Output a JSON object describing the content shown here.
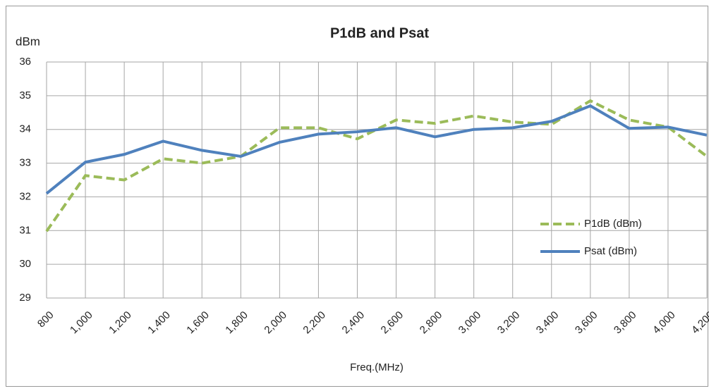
{
  "chart_data": {
    "type": "line",
    "title": "P1dB and Psat",
    "y_label": "dBm",
    "x_label": "Freq.(MHz)",
    "x": [
      800,
      1000,
      1200,
      1400,
      1600,
      1800,
      2000,
      2200,
      2400,
      2600,
      2800,
      3000,
      3200,
      3400,
      3600,
      3800,
      4000,
      4200
    ],
    "series": [
      {
        "name": "P1dB (dBm)",
        "color": "#9bbb59",
        "dashed": true,
        "values": [
          30.98,
          32.63,
          32.5,
          33.13,
          33.0,
          33.2,
          34.05,
          34.05,
          33.72,
          34.28,
          34.18,
          34.4,
          34.22,
          34.15,
          34.85,
          34.28,
          34.07,
          33.2
        ]
      },
      {
        "name": "Psat (dBm)",
        "color": "#4f81bd",
        "dashed": false,
        "values": [
          32.1,
          33.03,
          33.26,
          33.65,
          33.38,
          33.2,
          33.62,
          33.86,
          33.93,
          34.05,
          33.78,
          34.0,
          34.05,
          34.24,
          34.7,
          34.03,
          34.07,
          33.83
        ]
      }
    ],
    "xlim": [
      800,
      4200
    ],
    "xticks": [
      800,
      {
        "value": 1000,
        "label": "1,000"
      },
      {
        "value": 1200,
        "label": "1,200"
      },
      {
        "value": 1400,
        "label": "1,400"
      },
      {
        "value": 1600,
        "label": "1,600"
      },
      {
        "value": 1800,
        "label": "1,800"
      },
      {
        "value": 2000,
        "label": "2,000"
      },
      {
        "value": 2200,
        "label": "2,200"
      },
      {
        "value": 2400,
        "label": "2,400"
      },
      {
        "value": 2600,
        "label": "2,600"
      },
      {
        "value": 2800,
        "label": "2,800"
      },
      {
        "value": 3000,
        "label": "3,000"
      },
      {
        "value": 3200,
        "label": "3,200"
      },
      {
        "value": 3400,
        "label": "3,400"
      },
      {
        "value": 3600,
        "label": "3,600"
      },
      {
        "value": 3800,
        "label": "3,800"
      },
      {
        "value": 4000,
        "label": "4,000"
      },
      {
        "value": 4200,
        "label": "4,200"
      }
    ],
    "ylim": [
      29,
      36
    ],
    "yticks": [
      29,
      30,
      31,
      32,
      33,
      34,
      35,
      36
    ],
    "grid": true,
    "legend": "right"
  }
}
